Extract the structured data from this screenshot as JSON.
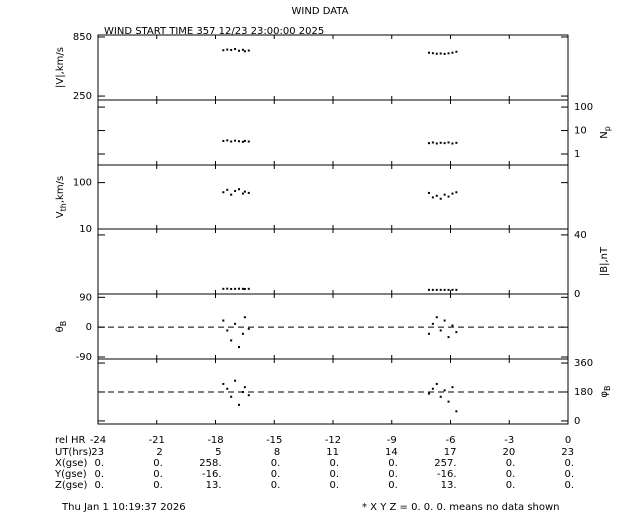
{
  "title": "WIND DATA",
  "subtitle": "WIND START TIME 357 12/23 23:00:00 2025",
  "x_axis": {
    "label": "rel HR",
    "xlim": [
      -24,
      0
    ],
    "xticks": [
      -24,
      -21,
      -18,
      -15,
      -12,
      -9,
      -6,
      -3,
      0
    ]
  },
  "orbit_table": {
    "rows": [
      {
        "label": "UT(hrs)",
        "values": [
          "23",
          "2",
          "5",
          "8",
          "11",
          "14",
          "17",
          "20",
          "23"
        ]
      },
      {
        "label": "X(gse)",
        "values": [
          "0.",
          "0.",
          "258.",
          "0.",
          "0.",
          "0.",
          "257.",
          "0.",
          "0."
        ]
      },
      {
        "label": "Y(gse)",
        "values": [
          "0.",
          "0.",
          "-16.",
          "0.",
          "0.",
          "0.",
          "-16.",
          "0.",
          "0."
        ]
      },
      {
        "label": "Z(gse)",
        "values": [
          "0.",
          "0.",
          "13.",
          "0.",
          "0.",
          "0.",
          "13.",
          "0.",
          "0."
        ]
      }
    ]
  },
  "footer": {
    "timestamp": "Thu Jan  1 10:19:37 2026",
    "note": "* X Y Z = 0. 0. 0. means no data shown"
  },
  "chart_data": [
    {
      "type": "scatter",
      "y_label": {
        "main": "|V|,km/s"
      },
      "side": "left",
      "log": false,
      "ylim": [
        210,
        870
      ],
      "yticks": [
        250,
        850
      ],
      "color": "#000000",
      "x": [
        -17.6,
        -17.4,
        -17.2,
        -17.0,
        -16.8,
        -16.6,
        -16.5,
        -16.3,
        -7.1,
        -6.9,
        -6.7,
        -6.5,
        -6.3,
        -6.1,
        -5.9,
        -5.7
      ],
      "values": [
        715,
        722,
        718,
        728,
        710,
        720,
        705,
        712,
        690,
        685,
        680,
        682,
        678,
        684,
        690,
        700
      ]
    },
    {
      "type": "scatter",
      "y_label": {
        "main": "N",
        "sub": "p"
      },
      "side": "right",
      "log": true,
      "ylim": [
        0.34,
        200
      ],
      "yticks": [
        1,
        10,
        100
      ],
      "color": "#000000",
      "x": [
        -17.6,
        -17.4,
        -17.2,
        -17.0,
        -16.8,
        -16.6,
        -16.5,
        -16.3,
        -7.1,
        -6.9,
        -6.7,
        -6.5,
        -6.3,
        -6.1,
        -5.9,
        -5.7
      ],
      "values": [
        3.6,
        3.8,
        3.4,
        3.7,
        3.5,
        3.3,
        3.6,
        3.4,
        2.9,
        3.1,
        2.8,
        3.0,
        2.9,
        3.1,
        2.8,
        3.0
      ]
    },
    {
      "type": "scatter",
      "y_label": {
        "main": "V",
        "sub": "th",
        "tail": ",km/s"
      },
      "side": "left",
      "log": true,
      "ylim": [
        10,
        240
      ],
      "yticks": [
        10,
        100
      ],
      "color": "#000000",
      "x": [
        -17.6,
        -17.4,
        -17.2,
        -17.0,
        -16.8,
        -16.6,
        -16.5,
        -16.3,
        -7.1,
        -6.9,
        -6.7,
        -6.5,
        -6.3,
        -6.1,
        -5.9,
        -5.7
      ],
      "values": [
        62,
        70,
        55,
        66,
        72,
        58,
        64,
        60,
        60,
        48,
        52,
        45,
        55,
        50,
        58,
        62
      ]
    },
    {
      "type": "scatter",
      "y_label": {
        "main": "|B|,nT"
      },
      "side": "right",
      "log": false,
      "ylim": [
        0,
        44
      ],
      "yticks": [
        0,
        40
      ],
      "color": "#000000",
      "x": [
        -17.6,
        -17.4,
        -17.2,
        -17.0,
        -16.8,
        -16.6,
        -16.5,
        -16.3,
        -7.1,
        -6.9,
        -6.7,
        -6.5,
        -6.3,
        -6.1,
        -5.9,
        -5.7
      ],
      "values": [
        3.5,
        3.6,
        3.4,
        3.5,
        3.6,
        3.5,
        3.4,
        3.5,
        2.8,
        2.8,
        2.8,
        2.8,
        2.8,
        2.8,
        2.8,
        2.8
      ]
    },
    {
      "type": "scatter",
      "y_label": {
        "main": "θ",
        "sub": "B"
      },
      "side": "left",
      "log": false,
      "ylim": [
        -96,
        100
      ],
      "yticks": [
        -90,
        0,
        90
      ],
      "reference_line": 0,
      "color": "#000000",
      "x": [
        -17.6,
        -17.4,
        -17.2,
        -17.0,
        -16.8,
        -16.6,
        -16.5,
        -16.3,
        -7.1,
        -6.9,
        -6.7,
        -6.5,
        -6.3,
        -6.1,
        -5.9,
        -5.7
      ],
      "values": [
        20,
        -10,
        -40,
        10,
        -60,
        -20,
        30,
        -5,
        -20,
        10,
        30,
        -10,
        20,
        -30,
        5,
        -15
      ]
    },
    {
      "type": "scatter",
      "y_label": {
        "main": "φ",
        "sub": "B"
      },
      "side": "right",
      "log": false,
      "ylim": [
        -19,
        385
      ],
      "yticks": [
        0,
        180,
        360
      ],
      "reference_line": 180,
      "color": "#000000",
      "x": [
        -17.6,
        -17.4,
        -17.2,
        -17.0,
        -16.8,
        -16.6,
        -16.5,
        -16.3,
        -7.1,
        -6.9,
        -6.7,
        -6.5,
        -6.3,
        -6.1,
        -5.9,
        -5.7
      ],
      "values": [
        230,
        200,
        150,
        250,
        100,
        180,
        210,
        160,
        170,
        200,
        230,
        150,
        190,
        120,
        210,
        60
      ]
    }
  ]
}
